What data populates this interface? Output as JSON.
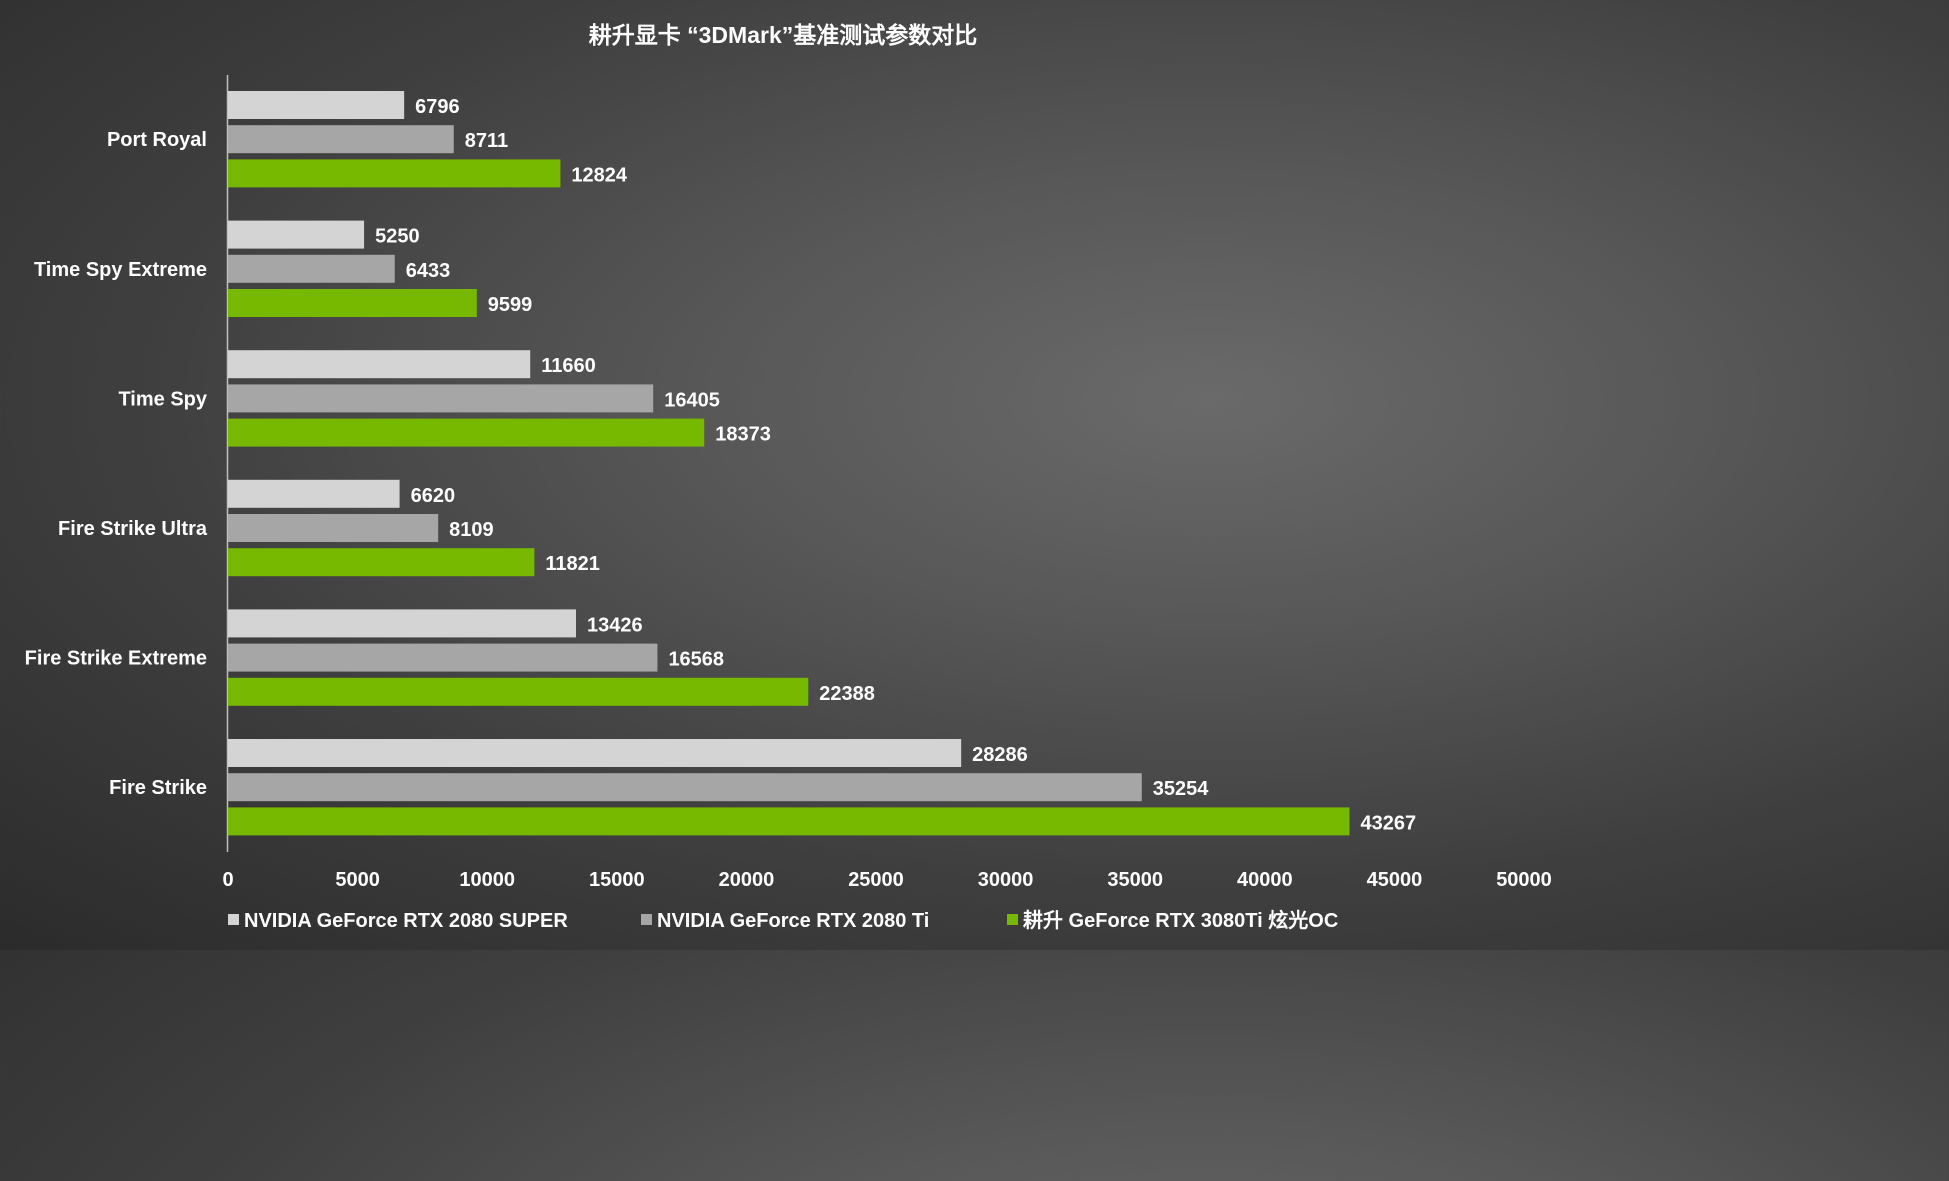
{
  "chart_data": {
    "type": "bar",
    "orientation": "horizontal",
    "title": "耕升显卡 “3DMark”基准测试参数对比",
    "categories": [
      "Port Royal",
      "Time Spy Extreme",
      "Time Spy",
      "Fire Strike Ultra",
      "Fire Strike Extreme",
      "Fire Strike"
    ],
    "series": [
      {
        "name": "NVIDIA GeForce RTX 2080 SUPER",
        "color": "#d4d4d4",
        "values": [
          6796,
          5250,
          11660,
          6620,
          13426,
          28286
        ]
      },
      {
        "name": "NVIDIA GeForce RTX 2080 Ti",
        "color": "#a6a6a6",
        "values": [
          8711,
          6433,
          16405,
          8109,
          16568,
          35254
        ]
      },
      {
        "name": "耕升 GeForce RTX 3080Ti 炫光OC",
        "color": "#76b900",
        "values": [
          12824,
          9599,
          18373,
          11821,
          22388,
          43267
        ]
      }
    ],
    "xlim": [
      0,
      50000
    ],
    "xticks": [
      "0",
      "5000",
      "10000",
      "15000",
      "20000",
      "25000",
      "30000",
      "35000",
      "40000",
      "45000",
      "50000"
    ],
    "xlabel": "",
    "ylabel": "",
    "grid": false,
    "legend_position": "bottom",
    "data_labels": true
  }
}
